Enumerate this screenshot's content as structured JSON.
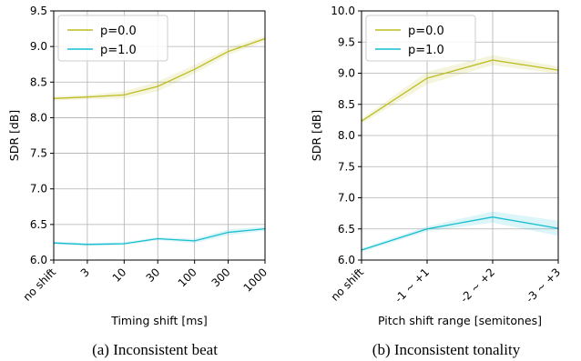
{
  "chart_data": [
    {
      "type": "line",
      "caption": "(a) Inconsistent beat",
      "xlabel": "Timing shift [ms]",
      "ylabel": "SDR [dB]",
      "categories": [
        "no shift",
        "3",
        "10",
        "30",
        "100",
        "300",
        "1000"
      ],
      "x_scale": "log-like",
      "x_values": [
        1,
        3,
        10,
        30,
        100,
        300,
        1000
      ],
      "ylim": [
        6.0,
        9.5
      ],
      "yticks": [
        "6.0",
        "6.5",
        "7.0",
        "7.5",
        "8.0",
        "8.5",
        "9.0",
        "9.5"
      ],
      "grid": true,
      "legend_position": "top-left",
      "series": [
        {
          "name": "p=0.0",
          "color": "#bcbd22",
          "values": [
            8.27,
            8.29,
            8.32,
            8.44,
            8.68,
            8.93,
            9.11
          ],
          "band": [
            0.03,
            0.03,
            0.05,
            0.07,
            0.06,
            0.05,
            0.04
          ]
        },
        {
          "name": "p=1.0",
          "color": "#17becf",
          "values": [
            6.24,
            6.22,
            6.23,
            6.3,
            6.27,
            6.39,
            6.44
          ],
          "band": [
            0.02,
            0.02,
            0.02,
            0.02,
            0.03,
            0.04,
            0.03
          ]
        }
      ]
    },
    {
      "type": "line",
      "caption": "(b) Inconsistent tonality",
      "xlabel": "Pitch shift range [semitones]",
      "ylabel": "SDR [dB]",
      "categories": [
        "no shift",
        "-1 ~ +1",
        "-2 ~ +2",
        "-3 ~ +3"
      ],
      "ylim": [
        6.0,
        10.0
      ],
      "yticks": [
        "6.0",
        "6.5",
        "7.0",
        "7.5",
        "8.0",
        "8.5",
        "9.0",
        "9.5",
        "10.0"
      ],
      "grid": true,
      "legend_position": "top-left",
      "series": [
        {
          "name": "p=0.0",
          "color": "#bcbd22",
          "values": [
            8.23,
            8.92,
            9.21,
            9.05
          ],
          "band": [
            0.04,
            0.1,
            0.08,
            0.06
          ]
        },
        {
          "name": "p=1.0",
          "color": "#17becf",
          "values": [
            6.16,
            6.5,
            6.69,
            6.51
          ],
          "band": [
            0.03,
            0.04,
            0.09,
            0.12
          ]
        }
      ]
    }
  ]
}
